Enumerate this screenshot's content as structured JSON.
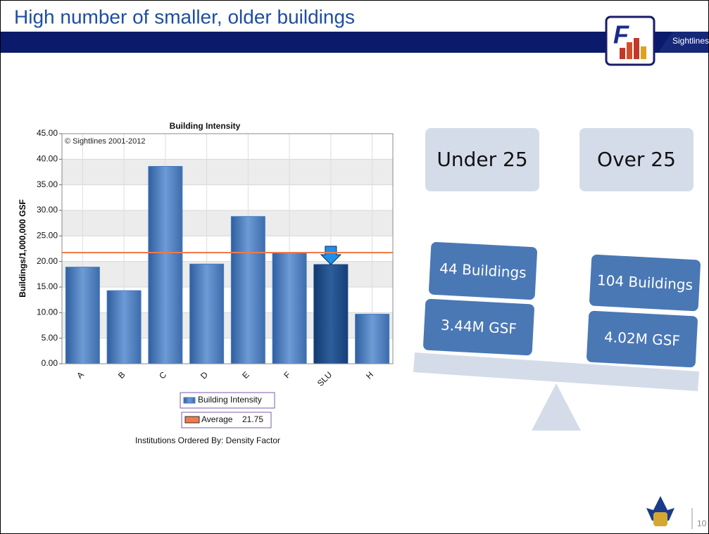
{
  "slide": {
    "title": "High number of smaller, older buildings",
    "brand": "Sightlines",
    "page": "10"
  },
  "chart_data": {
    "type": "bar",
    "title": "Building Intensity",
    "note": "© Sightlines 2001-2012",
    "y_label": "Buildings/1,000,000 GSF",
    "x_label": "Institutions Ordered By: Density Factor",
    "categories": [
      "A",
      "B",
      "C",
      "D",
      "E",
      "F",
      "SLU",
      "H"
    ],
    "series": [
      {
        "name": "Building Intensity",
        "color": "#4a7cc0",
        "values": [
          18.9,
          14.3,
          38.6,
          19.5,
          28.8,
          21.8,
          19.4,
          9.7
        ]
      }
    ],
    "highlight": {
      "category": "SLU",
      "color": "#1c4a86"
    },
    "average": {
      "name": "Average",
      "value": 21.75,
      "color": "#f07a4a"
    },
    "ylim": [
      0,
      45
    ],
    "yticks": [
      {
        "value": 0,
        "label": "0.00"
      },
      {
        "value": 5,
        "label": "5.00"
      },
      {
        "value": 10,
        "label": "10.00"
      },
      {
        "value": 15,
        "label": "15.00"
      },
      {
        "value": 20,
        "label": "20.00"
      },
      {
        "value": 25,
        "label": "25.00"
      },
      {
        "value": 30,
        "label": "30.00"
      },
      {
        "value": 35,
        "label": "35.00"
      },
      {
        "value": 40,
        "label": "40.00"
      },
      {
        "value": 45,
        "label": "45.00"
      }
    ],
    "grid": true
  },
  "diagram": {
    "left": {
      "heading": "Under 25",
      "buildings": "44 Buildings",
      "area": "3.44M GSF"
    },
    "right": {
      "heading": "Over 25",
      "buildings": "104 Buildings",
      "area": "4.02M GSF"
    }
  }
}
